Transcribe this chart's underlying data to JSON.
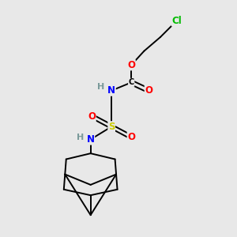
{
  "bg_color": "#e8e8e8",
  "atom_colors": {
    "Cl": "#00bb00",
    "O": "#ff0000",
    "N": "#0000ff",
    "S": "#cccc00",
    "H": "#7a9a9a",
    "C": "#000000"
  },
  "bond_color": "#000000",
  "bond_width": 1.4,
  "figsize": [
    3.0,
    3.0
  ],
  "dpi": 100
}
